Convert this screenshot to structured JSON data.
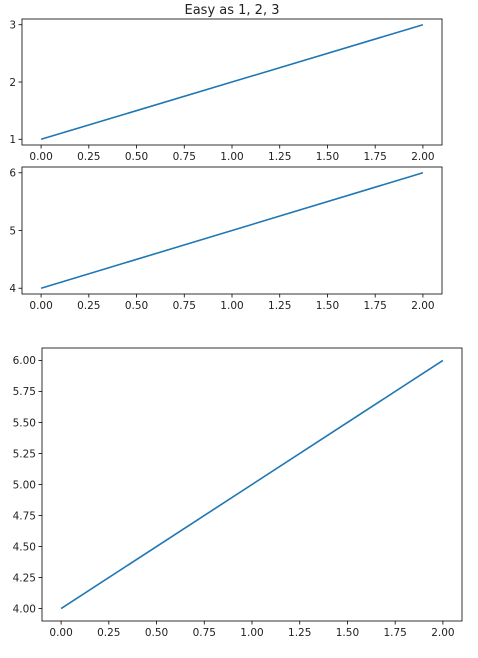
{
  "chart_data": [
    {
      "type": "line",
      "title": "Easy as 1, 2, 3",
      "x": [
        0,
        2
      ],
      "series": [
        {
          "values": [
            1,
            3
          ],
          "color": "#1f77b4"
        }
      ],
      "xlim": [
        -0.1,
        2.1
      ],
      "ylim": [
        0.9,
        3.1
      ],
      "xticks": [
        "0.00",
        "0.25",
        "0.50",
        "0.75",
        "1.00",
        "1.25",
        "1.50",
        "1.75",
        "2.00"
      ],
      "yticks": [
        "1",
        "2",
        "3"
      ],
      "grid": false
    },
    {
      "type": "line",
      "title": "",
      "x": [
        0,
        2
      ],
      "series": [
        {
          "values": [
            4,
            6
          ],
          "color": "#1f77b4"
        }
      ],
      "xlim": [
        -0.1,
        2.1
      ],
      "ylim": [
        3.9,
        6.1
      ],
      "xticks": [
        "0.00",
        "0.25",
        "0.50",
        "0.75",
        "1.00",
        "1.25",
        "1.50",
        "1.75",
        "2.00"
      ],
      "yticks": [
        "4",
        "5",
        "6"
      ],
      "grid": false
    },
    {
      "type": "line",
      "title": "",
      "x": [
        0,
        2
      ],
      "series": [
        {
          "values": [
            4,
            6
          ],
          "color": "#1f77b4"
        }
      ],
      "xlim": [
        -0.1,
        2.1
      ],
      "ylim": [
        3.9,
        6.1
      ],
      "xticks": [
        "0.00",
        "0.25",
        "0.50",
        "0.75",
        "1.00",
        "1.25",
        "1.50",
        "1.75",
        "2.00"
      ],
      "yticks": [
        "4.00",
        "4.25",
        "4.50",
        "4.75",
        "5.00",
        "5.25",
        "5.50",
        "5.75",
        "6.00"
      ],
      "grid": false
    }
  ]
}
